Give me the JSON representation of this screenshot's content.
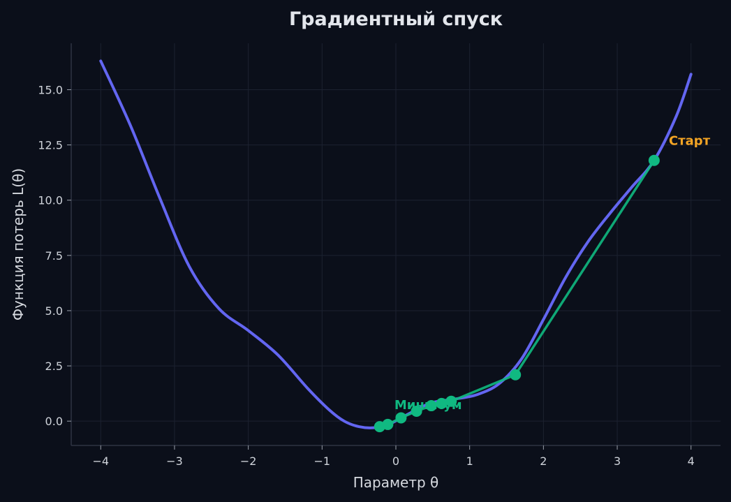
{
  "chart_data": {
    "type": "line",
    "title": "Градиентный спуск",
    "xlabel": "Параметр θ",
    "ylabel": "Функция потерь L(θ)",
    "xlim": [
      -4.4,
      4.4
    ],
    "ylim": [
      -1.1,
      17.1
    ],
    "xticks": [
      -4,
      -3,
      -2,
      -1,
      0,
      1,
      2,
      3,
      4
    ],
    "xtick_labels": [
      "−4",
      "−3",
      "−2",
      "−1",
      "0",
      "1",
      "2",
      "3",
      "4"
    ],
    "yticks": [
      0,
      2.5,
      5,
      7.5,
      10,
      12.5,
      15
    ],
    "ytick_labels": [
      "0.0",
      "2.5",
      "5.0",
      "7.5",
      "10.0",
      "12.5",
      "15.0"
    ],
    "grid": true,
    "series": [
      {
        "kind": "curve",
        "color": "#6366f1",
        "x": [
          -4.0,
          -3.6,
          -3.2,
          -2.8,
          -2.4,
          -2.0,
          -1.6,
          -1.2,
          -0.9,
          -0.7,
          -0.5,
          -0.3,
          -0.1,
          0.1,
          0.3,
          0.5,
          0.8,
          1.1,
          1.4,
          1.7,
          2.0,
          2.3,
          2.6,
          2.9,
          3.2,
          3.5,
          3.8,
          4.0
        ],
        "y": [
          16.3,
          13.4,
          10.1,
          7.0,
          5.1,
          4.1,
          3.0,
          1.5,
          0.5,
          0.0,
          -0.25,
          -0.3,
          -0.15,
          0.2,
          0.55,
          0.85,
          1.0,
          1.2,
          1.7,
          2.8,
          4.6,
          6.5,
          8.1,
          9.4,
          10.6,
          11.8,
          13.8,
          15.7
        ]
      },
      {
        "kind": "path",
        "color": "#10b981",
        "x": [
          3.5,
          1.62,
          0.75,
          0.62,
          0.48,
          0.28,
          0.07,
          -0.11,
          -0.22
        ],
        "y": [
          11.8,
          2.1,
          0.9,
          0.8,
          0.7,
          0.45,
          0.15,
          -0.15,
          -0.25
        ]
      }
    ],
    "annotations": [
      {
        "text": "Старт",
        "x": 3.7,
        "y": 12.5,
        "color": "#f5a524"
      },
      {
        "text": "Минимум",
        "x": -0.02,
        "y": 0.55,
        "color": "#10b981"
      }
    ]
  }
}
